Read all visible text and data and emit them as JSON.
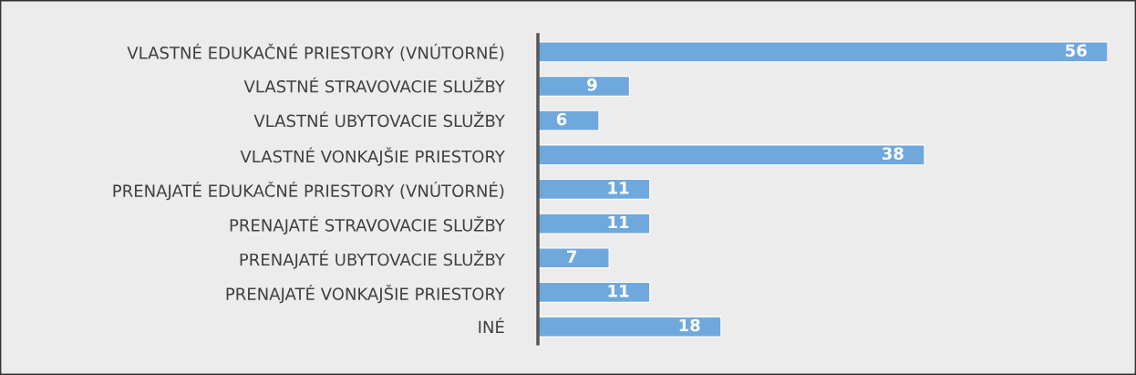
{
  "chart_data": {
    "type": "bar",
    "orientation": "horizontal",
    "categories": [
      "VLASTNÉ EDUKAČNÉ PRIESTORY (VNÚTORNÉ)",
      "VLASTNÉ STRAVOVACIE SLUŽBY",
      "VLASTNÉ UBYTOVACIE SLUŽBY",
      "VLASTNÉ VONKAJŠIE PRIESTORY",
      "PRENAJATÉ EDUKAČNÉ PRIESTORY (VNÚTORNÉ)",
      "PRENAJATÉ STRAVOVACIE SLUŽBY",
      "PRENAJATÉ UBYTOVACIE SLUŽBY",
      "PRENAJATÉ VONKAJŠIE PRIESTORY",
      "INÉ"
    ],
    "values": [
      56,
      9,
      6,
      38,
      11,
      11,
      7,
      11,
      18
    ],
    "color": "#6fa8dc",
    "data_labels": true,
    "grid": false,
    "legend": false
  }
}
